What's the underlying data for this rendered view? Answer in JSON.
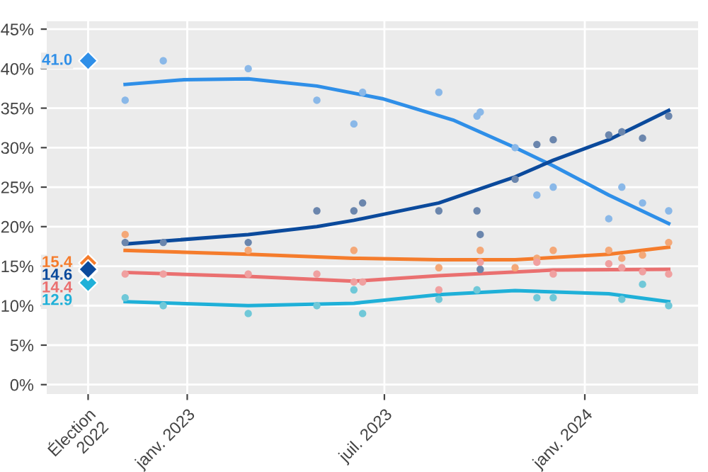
{
  "chart_data": {
    "type": "scatter",
    "xlim": [
      "2022-08-25",
      "2024-04-14"
    ],
    "ylim": [
      -1.2,
      46
    ],
    "xticks": [
      {
        "value": "2022-10-02",
        "label": "Élection\n2022"
      },
      {
        "value": "2023-01-01",
        "label": "janv. 2023"
      },
      {
        "value": "2023-07-01",
        "label": "juil. 2023"
      },
      {
        "value": "2024-01-01",
        "label": "janv. 2024"
      }
    ],
    "yticks": [
      {
        "value": 0,
        "label": "0%"
      },
      {
        "value": 5,
        "label": "5%"
      },
      {
        "value": 10,
        "label": "10%"
      },
      {
        "value": 15,
        "label": "15%"
      },
      {
        "value": 20,
        "label": "20%"
      },
      {
        "value": 25,
        "label": "25%"
      },
      {
        "value": 30,
        "label": "30%"
      },
      {
        "value": 35,
        "label": "35%"
      },
      {
        "value": 40,
        "label": "40%"
      },
      {
        "value": 45,
        "label": "45%"
      }
    ],
    "grid": true,
    "marker": "circle",
    "series": [
      {
        "color": "#8ab8e8",
        "x": [
          "2022-11-05",
          "2022-12-10",
          "2023-02-26",
          "2023-04-30",
          "2023-06-03",
          "2023-06-11",
          "2023-08-20",
          "2023-09-24",
          "2023-09-27",
          "2023-10-29",
          "2023-11-18",
          "2023-12-03",
          "2024-01-23",
          "2024-02-04",
          "2024-02-23",
          "2024-03-18"
        ],
        "values": [
          36,
          41,
          40,
          36,
          33,
          37,
          37,
          34,
          34.5,
          30,
          24,
          25,
          21,
          25,
          23,
          22
        ]
      },
      {
        "color": "#6b86ad",
        "x": [
          "2022-11-05",
          "2022-12-10",
          "2023-02-26",
          "2023-04-30",
          "2023-06-03",
          "2023-06-11",
          "2023-08-20",
          "2023-09-24",
          "2023-09-27",
          "2023-09-27",
          "2023-10-29",
          "2023-11-18",
          "2023-12-03",
          "2024-01-23",
          "2024-02-04",
          "2024-02-23",
          "2024-03-18"
        ],
        "values": [
          18,
          18,
          18,
          22,
          22,
          23,
          22,
          22,
          19,
          14.6,
          26,
          30.4,
          31,
          31.6,
          32,
          31.2,
          34
        ]
      },
      {
        "color": "#f4a878",
        "x": [
          "2022-11-05",
          "2023-02-26",
          "2023-06-03",
          "2023-08-20",
          "2023-09-27",
          "2023-10-29",
          "2023-11-18",
          "2023-12-03",
          "2024-01-23",
          "2024-02-04",
          "2024-02-23",
          "2024-03-18"
        ],
        "values": [
          19,
          17,
          17,
          14.8,
          17,
          14.8,
          16,
          17,
          17,
          16,
          16.4,
          18
        ]
      },
      {
        "color": "#f0a0a0",
        "x": [
          "2022-11-05",
          "2022-12-10",
          "2023-02-26",
          "2023-04-30",
          "2023-06-03",
          "2023-06-11",
          "2023-08-20",
          "2023-09-27",
          "2023-11-18",
          "2023-12-03",
          "2024-01-23",
          "2024-02-04",
          "2024-02-23",
          "2024-03-18"
        ],
        "values": [
          14,
          14,
          14,
          14,
          13,
          13,
          12,
          15.5,
          15.5,
          14,
          15.3,
          14.8,
          14.3,
          14
        ]
      },
      {
        "color": "#70c8d8",
        "x": [
          "2022-11-05",
          "2022-12-10",
          "2023-02-26",
          "2023-04-30",
          "2023-06-03",
          "2023-06-11",
          "2023-08-20",
          "2023-09-24",
          "2023-11-18",
          "2023-12-03",
          "2024-02-04",
          "2024-02-23",
          "2024-03-18"
        ],
        "values": [
          11,
          10,
          9,
          10,
          12,
          9,
          10.8,
          12,
          11,
          11,
          10.8,
          12.7,
          10
        ]
      },
      {
        "type": "line",
        "marker": "none",
        "color": "#2f8fe8",
        "x": [
          "2022-11-05",
          "2022-12-29",
          "2023-02-26",
          "2023-04-30",
          "2023-06-29",
          "2023-09-02",
          "2023-10-29",
          "2023-12-03",
          "2024-01-23",
          "2024-03-18"
        ],
        "values": [
          38,
          38.6,
          38.7,
          37.8,
          36.2,
          33.5,
          30,
          27.7,
          24,
          20.4
        ]
      },
      {
        "type": "line",
        "marker": "none",
        "color": "#0b4a9c",
        "x": [
          "2022-11-05",
          "2023-02-26",
          "2023-04-30",
          "2023-06-03",
          "2023-08-20",
          "2023-10-29",
          "2023-12-03",
          "2024-01-23",
          "2024-03-18"
        ],
        "values": [
          17.8,
          19,
          20,
          20.8,
          23,
          26.3,
          28.4,
          31,
          34.7
        ]
      },
      {
        "type": "line",
        "marker": "none",
        "color": "#f57c2c",
        "x": [
          "2022-11-05",
          "2023-02-26",
          "2023-06-03",
          "2023-08-20",
          "2023-10-29",
          "2024-01-23",
          "2024-03-18"
        ],
        "values": [
          17,
          16.5,
          16,
          15.8,
          15.8,
          16.5,
          17.4
        ]
      },
      {
        "type": "line",
        "marker": "none",
        "color": "#ea7070",
        "x": [
          "2022-11-05",
          "2023-02-26",
          "2023-06-03",
          "2023-08-20",
          "2023-12-03",
          "2024-03-18"
        ],
        "values": [
          14.2,
          13.7,
          13.1,
          13.8,
          14.5,
          14.6
        ]
      },
      {
        "type": "line",
        "marker": "none",
        "color": "#1fb0d8",
        "x": [
          "2022-11-05",
          "2023-02-26",
          "2023-06-03",
          "2023-08-20",
          "2023-10-29",
          "2024-01-23",
          "2024-03-18"
        ],
        "values": [
          10.5,
          10,
          10.3,
          11.4,
          11.9,
          11.5,
          10.5
        ]
      },
      {
        "type": "scatter",
        "marker": "diamond",
        "x": [
          "2022-10-02",
          "2022-10-02",
          "2022-10-02",
          "2022-10-02",
          "2022-10-02"
        ],
        "values": [
          41.0,
          14.6,
          15.4,
          14.4,
          12.9
        ],
        "colors": [
          "#2f8fe8",
          "#0b4a9c",
          "#f57c2c",
          "#ea7070",
          "#1fb0d8"
        ],
        "value_labels": [
          "41.0",
          "14.6",
          "15.4",
          "14.4",
          "12.9"
        ]
      }
    ]
  }
}
